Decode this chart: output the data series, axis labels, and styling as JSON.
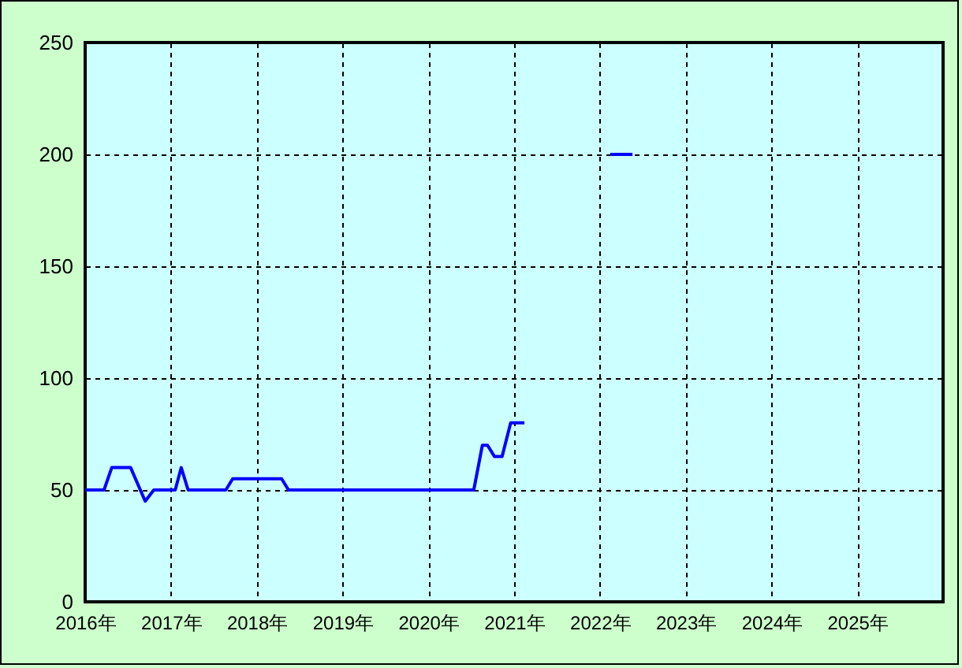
{
  "chart_data": {
    "type": "line",
    "x": [
      2016.0,
      2016.22,
      2016.31,
      2016.53,
      2016.7,
      2016.8,
      2017.05,
      2017.12,
      2017.2,
      2017.64,
      2017.72,
      2018.29,
      2018.37,
      2020.53,
      2020.63,
      2020.69,
      2020.77,
      2020.86,
      2020.96,
      2021.12,
      2021.6,
      2022.12,
      2022.38
    ],
    "series": [
      {
        "color": "#0000ff",
        "values": [
          50,
          50,
          60,
          60,
          45,
          50,
          50,
          60,
          50,
          50,
          55,
          55,
          50,
          50,
          70,
          70,
          65,
          65,
          80,
          80,
          null,
          200,
          200
        ]
      }
    ],
    "xlim": [
      2016,
      2026
    ],
    "xticks": [
      {
        "value": 2016,
        "label": "2016年"
      },
      {
        "value": 2017,
        "label": "2017年"
      },
      {
        "value": 2018,
        "label": "2018年"
      },
      {
        "value": 2019,
        "label": "2019年"
      },
      {
        "value": 2020,
        "label": "2020年"
      },
      {
        "value": 2021,
        "label": "2021年"
      },
      {
        "value": 2022,
        "label": "2022年"
      },
      {
        "value": 2023,
        "label": "2023年"
      },
      {
        "value": 2024,
        "label": "2024年"
      },
      {
        "value": 2025,
        "label": "2025年"
      }
    ],
    "ylim": [
      0,
      250
    ],
    "yticks": [
      0,
      50,
      100,
      150,
      200,
      250
    ],
    "grid": true,
    "marker": "none",
    "line_style": "solid"
  }
}
